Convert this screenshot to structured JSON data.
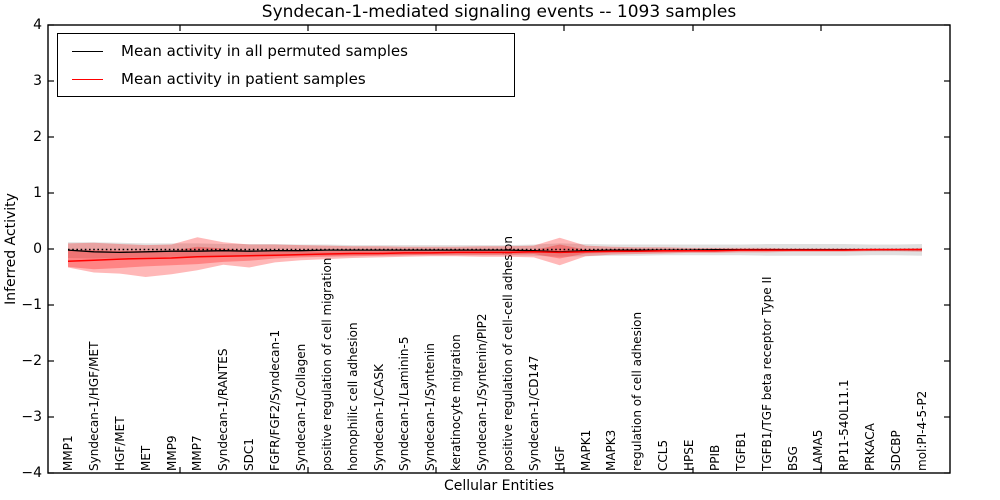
{
  "title": "Syndecan-1-mediated signaling events -- 1093 samples",
  "xlabel": "Cellular Entities",
  "ylabel": "Inferred Activity",
  "legend": [
    {
      "label": "Mean activity in all permuted samples",
      "color": "#000000"
    },
    {
      "label": "Mean activity in patient samples",
      "color": "#ff0000"
    }
  ],
  "yticks": [
    {
      "v": 4,
      "label": "4"
    },
    {
      "v": 3,
      "label": "3"
    },
    {
      "v": 2,
      "label": "2"
    },
    {
      "v": 1,
      "label": "1"
    },
    {
      "v": 0,
      "label": "0"
    },
    {
      "v": -1,
      "label": "−1"
    },
    {
      "v": -2,
      "label": "−2"
    },
    {
      "v": -3,
      "label": "−3"
    },
    {
      "v": -4,
      "label": "−4"
    }
  ],
  "colors": {
    "permuted_line": "#000000",
    "patient_line": "#ff0000",
    "permuted_band": "rgba(0,0,0,0.12)",
    "patient_band": "rgba(255,0,0,0.28)",
    "axis": "#000000",
    "reference_line": "#000000"
  },
  "chart_data": {
    "type": "line",
    "title": "Syndecan-1-mediated signaling events -- 1093 samples",
    "xlabel": "Cellular Entities",
    "ylabel": "Inferred Activity",
    "ylim": [
      -4,
      4
    ],
    "grid": false,
    "legend_position": "upper left",
    "reference_line": {
      "y": 0,
      "style": "dotted",
      "color": "#000000"
    },
    "categories": [
      "MMP1",
      "Syndecan-1/HGF/MET",
      "HGF/MET",
      "MET",
      "MMP9",
      "MMP7",
      "Syndecan-1/RANTES",
      "SDC1",
      "FGFR/FGF2/Syndecan-1",
      "Syndecan-1/Collagen",
      "positive regulation of cell migration",
      "homophilic cell adhesion",
      "Syndecan-1/CASK",
      "Syndecan-1/Laminin-5",
      "Syndecan-1/Syntenin",
      "keratinocyte migration",
      "Syndecan-1/Syntenin/PIP2",
      "positive regulation of cell-cell adhesion",
      "Syndecan-1/CD147",
      "HGF",
      "MAPK1",
      "MAPK3",
      "regulation of cell adhesion",
      "CCL5",
      "HPSE",
      "PPIB",
      "TGFB1",
      "TGFB1/TGF beta receptor Type II",
      "BSG",
      "LAMA5",
      "RP11-540L11.1",
      "PRKACA",
      "SDCBP",
      "mol:PI-4-5-P2"
    ],
    "series": [
      {
        "name": "Mean activity in all permuted samples",
        "color": "#000000",
        "values": [
          -0.02,
          -0.05,
          -0.06,
          -0.05,
          -0.04,
          -0.04,
          -0.03,
          -0.04,
          -0.03,
          -0.03,
          -0.02,
          -0.02,
          -0.02,
          -0.02,
          -0.02,
          -0.02,
          -0.02,
          -0.02,
          -0.03,
          -0.05,
          -0.03,
          -0.02,
          -0.02,
          -0.02,
          -0.02,
          -0.01,
          -0.01,
          -0.01,
          -0.01,
          -0.01,
          -0.01,
          -0.01,
          -0.01,
          -0.01
        ]
      },
      {
        "name": "Mean activity in patient samples",
        "color": "#ff0000",
        "values": [
          -0.22,
          -0.2,
          -0.18,
          -0.17,
          -0.16,
          -0.14,
          -0.13,
          -0.12,
          -0.11,
          -0.1,
          -0.09,
          -0.08,
          -0.08,
          -0.07,
          -0.07,
          -0.06,
          -0.06,
          -0.06,
          -0.05,
          -0.06,
          -0.05,
          -0.04,
          -0.04,
          -0.03,
          -0.03,
          -0.03,
          -0.02,
          -0.02,
          -0.02,
          -0.02,
          -0.02,
          -0.01,
          -0.01,
          -0.01
        ]
      }
    ],
    "bands": [
      {
        "name": "permuted-samples-range",
        "color": "rgba(0,0,0,0.12)",
        "upper": [
          0.12,
          0.12,
          0.11,
          0.1,
          0.1,
          0.1,
          0.09,
          0.09,
          0.09,
          0.08,
          0.08,
          0.07,
          0.07,
          0.07,
          0.07,
          0.07,
          0.07,
          0.07,
          0.08,
          0.1,
          0.09,
          0.08,
          0.08,
          0.08,
          0.08,
          0.08,
          0.08,
          0.09,
          0.09,
          0.09,
          0.09,
          0.08,
          0.08,
          0.09
        ],
        "lower": [
          -0.16,
          -0.17,
          -0.16,
          -0.15,
          -0.14,
          -0.14,
          -0.13,
          -0.13,
          -0.13,
          -0.12,
          -0.12,
          -0.11,
          -0.11,
          -0.11,
          -0.11,
          -0.11,
          -0.11,
          -0.11,
          -0.12,
          -0.14,
          -0.13,
          -0.12,
          -0.12,
          -0.11,
          -0.11,
          -0.11,
          -0.11,
          -0.12,
          -0.12,
          -0.12,
          -0.12,
          -0.11,
          -0.11,
          -0.12
        ]
      },
      {
        "name": "patient-samples-range-outer",
        "color": "rgba(255,0,0,0.28)",
        "upper": [
          0.1,
          0.11,
          0.09,
          0.07,
          0.08,
          0.21,
          0.12,
          0.08,
          0.08,
          0.07,
          0.06,
          0.05,
          0.05,
          0.04,
          0.04,
          0.04,
          0.05,
          0.05,
          0.06,
          0.2,
          0.06,
          0.04,
          0.03,
          0.03,
          0.02,
          0.02,
          0.02,
          0.02,
          0.01,
          0.01,
          0.01,
          0.01,
          0.01,
          0.02
        ],
        "lower": [
          -0.33,
          -0.42,
          -0.44,
          -0.5,
          -0.45,
          -0.38,
          -0.28,
          -0.33,
          -0.24,
          -0.2,
          -0.18,
          -0.16,
          -0.15,
          -0.14,
          -0.13,
          -0.13,
          -0.14,
          -0.14,
          -0.15,
          -0.29,
          -0.13,
          -0.1,
          -0.09,
          -0.08,
          -0.07,
          -0.07,
          -0.06,
          -0.06,
          -0.05,
          -0.05,
          -0.05,
          -0.04,
          -0.04,
          -0.05
        ]
      },
      {
        "name": "patient-samples-range-inner",
        "color": "rgba(255,0,0,0.28)",
        "upper": [
          -0.02,
          -0.02,
          -0.03,
          -0.03,
          -0.03,
          0.04,
          0.01,
          -0.03,
          -0.04,
          -0.04,
          -0.04,
          -0.04,
          -0.04,
          -0.03,
          -0.03,
          -0.03,
          -0.03,
          -0.03,
          -0.02,
          0.08,
          -0.01,
          -0.02,
          -0.02,
          -0.02,
          -0.02,
          -0.01,
          -0.01,
          -0.01,
          -0.01,
          -0.01,
          -0.01,
          -0.01,
          -0.01,
          0.0
        ],
        "lower": [
          -0.32,
          -0.36,
          -0.34,
          -0.31,
          -0.29,
          -0.27,
          -0.23,
          -0.21,
          -0.17,
          -0.15,
          -0.14,
          -0.13,
          -0.12,
          -0.11,
          -0.1,
          -0.1,
          -0.1,
          -0.1,
          -0.09,
          -0.17,
          -0.08,
          -0.07,
          -0.06,
          -0.06,
          -0.05,
          -0.05,
          -0.04,
          -0.04,
          -0.03,
          -0.03,
          -0.03,
          -0.03,
          -0.02,
          -0.02
        ]
      }
    ]
  }
}
